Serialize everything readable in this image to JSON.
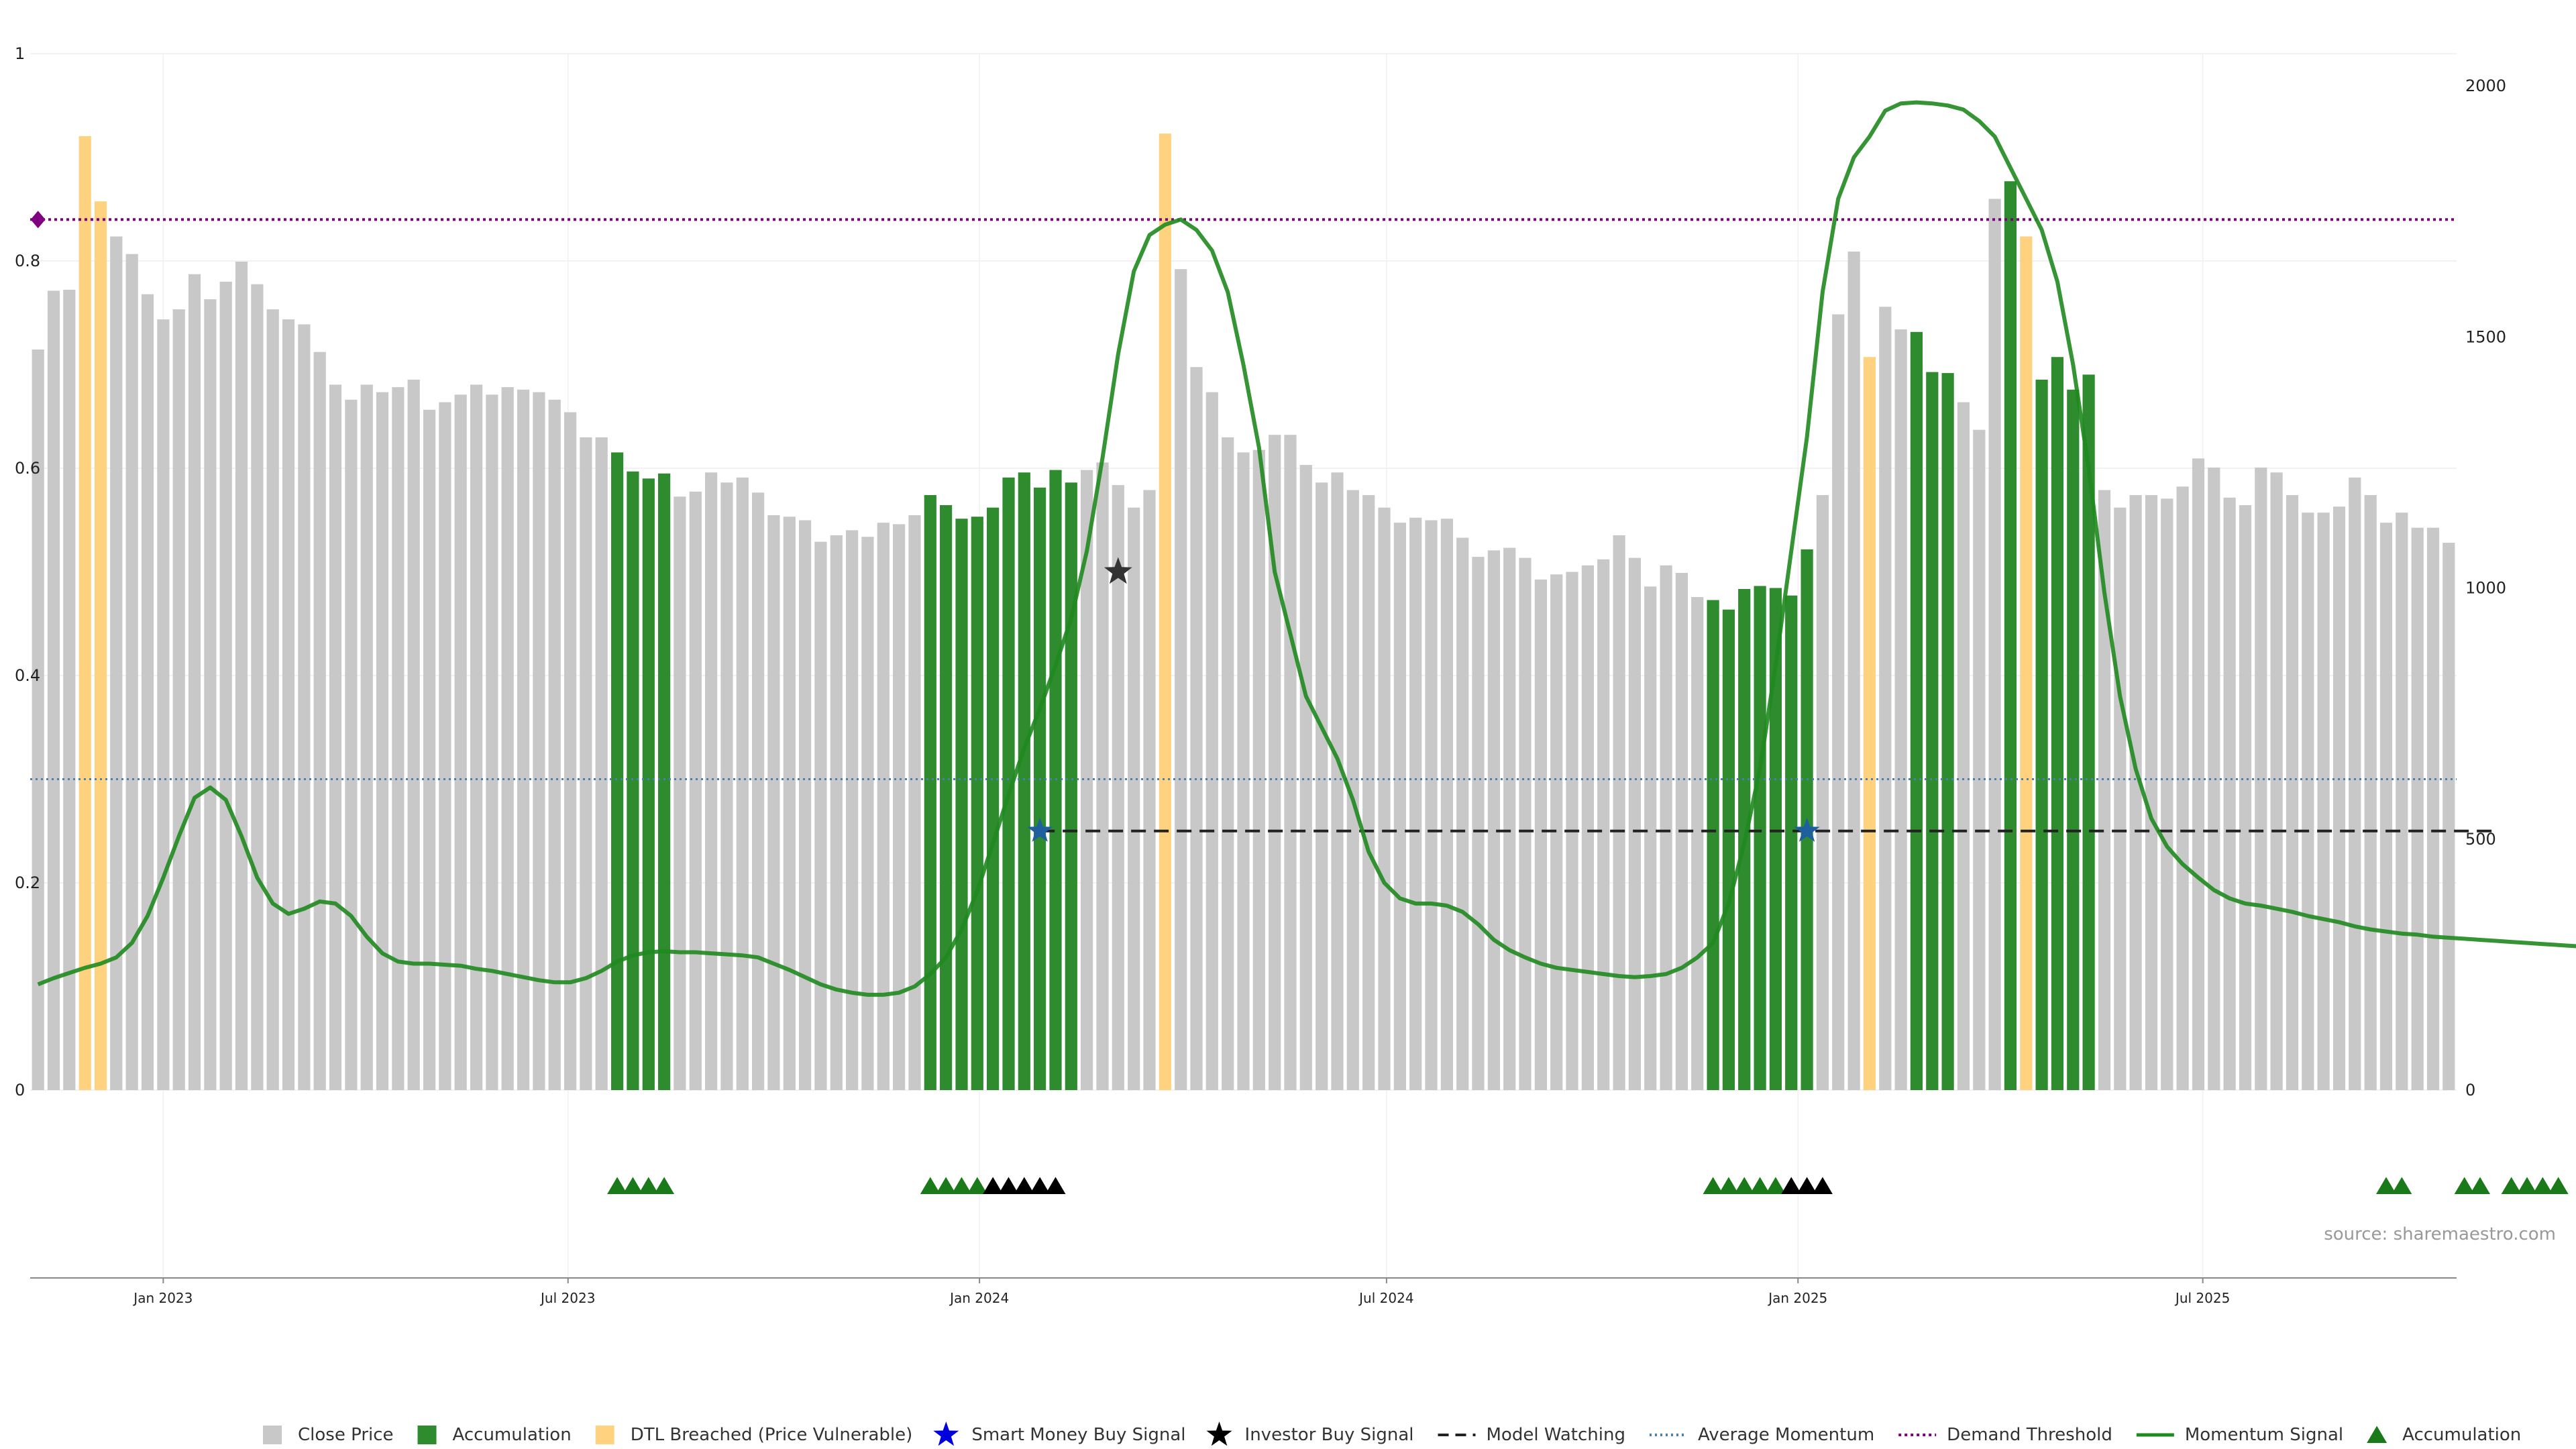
{
  "source": "source: sharemaestro.com",
  "colors": {
    "close": "#c8c8c8",
    "accumulation": "#2e8b2e",
    "dtl": "#ffd27f",
    "momentum": "#1f8a1f",
    "avg_momentum": "#4a7fb0",
    "demand": "#800080",
    "model": "#222222",
    "smart_star": "#1f5fa0",
    "investor_star": "#333333",
    "acc_marker": "#1a7a1a",
    "inv_marker": "#000000"
  },
  "chart_data": {
    "type": "bar",
    "start_date": "2022-11-06",
    "step_days": 7,
    "left_axis": {
      "min": 0,
      "max": 1,
      "ticks": [
        "0",
        "0.2",
        "0.4",
        "0.6",
        "0.8",
        "1"
      ]
    },
    "right_axis": {
      "min": 0,
      "max": 2000,
      "ticks": [
        "0",
        "500",
        "1000",
        "1500",
        "2000"
      ]
    },
    "date_ticks": [
      {
        "date": "2023-01-01",
        "label": "Jan 2023"
      },
      {
        "date": "2023-07-01",
        "label": "Jul 2023"
      },
      {
        "date": "2024-01-01",
        "label": "Jan 2024"
      },
      {
        "date": "2024-07-01",
        "label": "Jul 2024"
      },
      {
        "date": "2025-01-01",
        "label": "Jan 2025"
      },
      {
        "date": "2025-07-01",
        "label": "Jul 2025"
      }
    ],
    "close_values": [
      1475,
      1592,
      1594,
      1900,
      1770,
      1700,
      1665,
      1585,
      1535,
      1555,
      1625,
      1575,
      1610,
      1650,
      1605,
      1555,
      1535,
      1525,
      1470,
      1405,
      1375,
      1405,
      1390,
      1400,
      1415,
      1355,
      1370,
      1385,
      1405,
      1385,
      1400,
      1395,
      1390,
      1375,
      1350,
      1300,
      1300,
      1270,
      1232,
      1218,
      1228,
      1182,
      1192,
      1230,
      1210,
      1220,
      1190,
      1145,
      1142,
      1135,
      1092,
      1105,
      1115,
      1102,
      1130,
      1127,
      1145,
      1185,
      1165,
      1138,
      1142,
      1160,
      1220,
      1230,
      1200,
      1235,
      1210,
      1235,
      1250,
      1205,
      1160,
      1195,
      1905,
      1635,
      1440,
      1390,
      1300,
      1270,
      1275,
      1305,
      1305,
      1245,
      1210,
      1230,
      1195,
      1185,
      1160,
      1130,
      1140,
      1135,
      1138,
      1100,
      1062,
      1075,
      1080,
      1060,
      1017,
      1027,
      1032,
      1045,
      1057,
      1105,
      1060,
      1003,
      1045,
      1030,
      982,
      976,
      957,
      998,
      1004,
      1000,
      985,
      1077,
      1185,
      1545,
      1670,
      1460,
      1560,
      1515,
      1510,
      1430,
      1428,
      1370,
      1315,
      1775,
      1810,
      1700,
      1415,
      1460,
      1395,
      1425,
      1195,
      1160,
      1185,
      1185,
      1178,
      1202,
      1258,
      1240,
      1180,
      1165,
      1240,
      1230,
      1185,
      1150,
      1150,
      1162,
      1220,
      1185,
      1130,
      1150,
      1120,
      1120,
      1090
    ],
    "categories": {
      "accumulation": [
        37,
        38,
        39,
        40,
        57,
        58,
        59,
        60,
        61,
        62,
        63,
        64,
        65,
        66,
        107,
        108,
        109,
        110,
        111,
        112,
        113,
        120,
        121,
        122,
        126,
        127,
        128,
        129,
        130,
        131
      ],
      "dtl": [
        3,
        4,
        72,
        117,
        127
      ]
    },
    "momentum": [
      0.102,
      0.108,
      0.113,
      0.118,
      0.122,
      0.128,
      0.142,
      0.168,
      0.205,
      0.245,
      0.282,
      0.292,
      0.28,
      0.245,
      0.205,
      0.18,
      0.17,
      0.175,
      0.182,
      0.18,
      0.168,
      0.148,
      0.132,
      0.124,
      0.122,
      0.122,
      0.121,
      0.12,
      0.117,
      0.115,
      0.112,
      0.109,
      0.106,
      0.104,
      0.104,
      0.108,
      0.115,
      0.124,
      0.13,
      0.133,
      0.134,
      0.133,
      0.133,
      0.132,
      0.131,
      0.13,
      0.128,
      0.122,
      0.116,
      0.109,
      0.102,
      0.097,
      0.094,
      0.092,
      0.092,
      0.094,
      0.1,
      0.112,
      0.128,
      0.155,
      0.192,
      0.238,
      0.285,
      0.33,
      0.368,
      0.41,
      0.455,
      0.52,
      0.61,
      0.71,
      0.79,
      0.825,
      0.835,
      0.84,
      0.83,
      0.81,
      0.77,
      0.7,
      0.62,
      0.5,
      0.44,
      0.38,
      0.35,
      0.32,
      0.28,
      0.23,
      0.2,
      0.185,
      0.18,
      0.18,
      0.178,
      0.172,
      0.16,
      0.145,
      0.135,
      0.128,
      0.122,
      0.118,
      0.116,
      0.114,
      0.112,
      0.11,
      0.109,
      0.11,
      0.112,
      0.118,
      0.128,
      0.142,
      0.18,
      0.238,
      0.31,
      0.41,
      0.52,
      0.63,
      0.77,
      0.86,
      0.9,
      0.92,
      0.945,
      0.952,
      0.953,
      0.952,
      0.95,
      0.946,
      0.935,
      0.92,
      0.89,
      0.86,
      0.83,
      0.78,
      0.7,
      0.6,
      0.48,
      0.38,
      0.31,
      0.262,
      0.235,
      0.218,
      0.205,
      0.193,
      0.185,
      0.18,
      0.178,
      0.175,
      0.172,
      0.168,
      0.165,
      0.162,
      0.158,
      0.155,
      0.153,
      0.151,
      0.15,
      0.148,
      0.147,
      0.146,
      0.145,
      0.144,
      0.143,
      0.142,
      0.141,
      0.14,
      0.139,
      0.138
    ],
    "average_momentum": 0.3,
    "demand_threshold": 0.84,
    "demand_marker_index": 0,
    "model_watching": {
      "value": 0.25,
      "from_index": 64,
      "to_index": 157
    },
    "smart_money_signals": [
      {
        "index": 64,
        "value": 0.25
      },
      {
        "index": 113,
        "value": 0.25
      }
    ],
    "investor_signals": [
      {
        "index": 69,
        "value": 0.5
      }
    ],
    "accumulation_markers": [
      37,
      38,
      39,
      40,
      57,
      58,
      59,
      60,
      107,
      108,
      109,
      110,
      111,
      150,
      151,
      155,
      156,
      158,
      159,
      160,
      161
    ],
    "investor_markers": [
      61,
      62,
      63,
      64,
      65,
      112,
      113,
      114
    ],
    "legend": [
      {
        "key": "close",
        "label": "Close Price",
        "shape": "square"
      },
      {
        "key": "accumulation",
        "label": "Accumulation",
        "shape": "square"
      },
      {
        "key": "dtl",
        "label": "DTL Breached (Price Vulnerable)",
        "shape": "square"
      },
      {
        "key": "smart_star",
        "label": "Smart Money Buy Signal",
        "shape": "star"
      },
      {
        "key": "investor_star",
        "label": "Investor Buy Signal",
        "shape": "star"
      },
      {
        "key": "model",
        "label": "Model Watching",
        "shape": "dash"
      },
      {
        "key": "avg_momentum",
        "label": "Average Momentum",
        "shape": "dot"
      },
      {
        "key": "demand",
        "label": "Demand Threshold",
        "shape": "dotline"
      },
      {
        "key": "momentum",
        "label": "Momentum Signal",
        "shape": "line"
      },
      {
        "key": "acc_marker",
        "label": "Accumulation",
        "shape": "triangle"
      }
    ]
  }
}
